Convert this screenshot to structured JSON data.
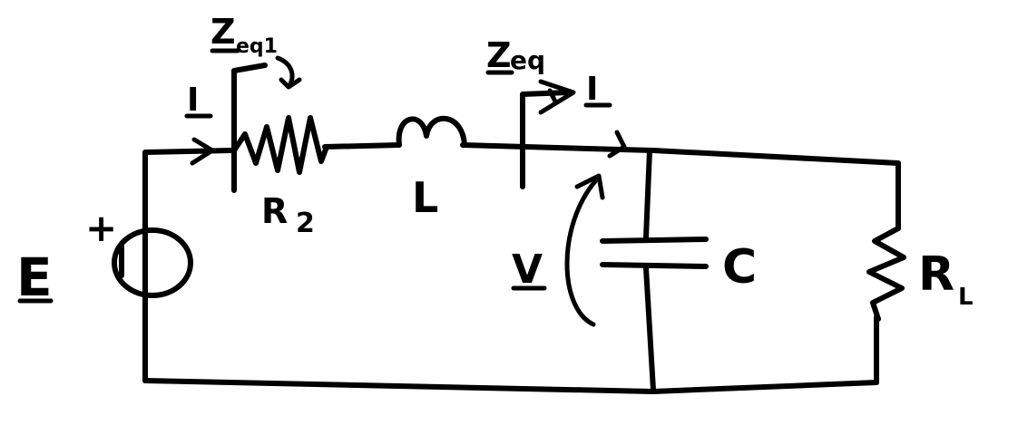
{
  "labels": {
    "source": "E",
    "source_plus": "+",
    "current_left": "I",
    "current_right": "I",
    "zeq_left_base": "Z",
    "zeq_left_sub": "eq1",
    "zeq_right_base": "Z",
    "zeq_right_sub": "eq",
    "resistor_series_base": "R",
    "resistor_series_sub": "2",
    "inductor": "L",
    "voltage": "V",
    "capacitor": "C",
    "load_base": "R",
    "load_sub": "L"
  },
  "colors": {
    "ink": "#000000",
    "background": "#ffffff"
  }
}
